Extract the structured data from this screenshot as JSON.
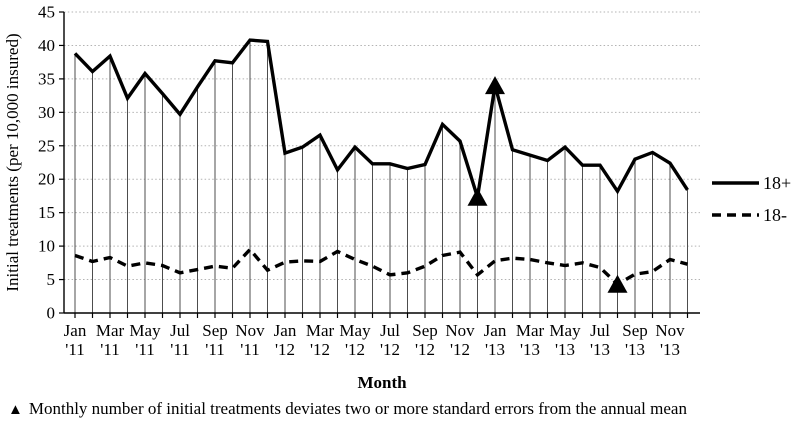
{
  "chart_data": {
    "type": "line",
    "title": "",
    "xlabel": "Month",
    "ylabel": "Initial treatments (per 10,000 insured)",
    "ylim": [
      0,
      45
    ],
    "ytick_interval": 5,
    "yticks": [
      0,
      5,
      10,
      15,
      20,
      25,
      30,
      35,
      40,
      45
    ],
    "x_tick_label_step": 2,
    "grid": {
      "horizontal": "dotted",
      "vertical_drop_lines_to": "18+"
    },
    "legend_position": "right",
    "categories": [
      "Jan '11",
      "Feb '11",
      "Mar '11",
      "Apr '11",
      "May '11",
      "Jun '11",
      "Jul '11",
      "Aug '11",
      "Sep '11",
      "Oct '11",
      "Nov '11",
      "Dec '11",
      "Jan '12",
      "Feb '12",
      "Mar '12",
      "Apr '12",
      "May '12",
      "Jun '12",
      "Jul '12",
      "Aug '12",
      "Sep '12",
      "Oct '12",
      "Nov '12",
      "Dec '12",
      "Jan '13",
      "Feb '13",
      "Mar '13",
      "Apr '13",
      "May '13",
      "Jun '13",
      "Jul '13",
      "Aug '13",
      "Sep '13",
      "Oct '13",
      "Nov '13",
      "Dec '13"
    ],
    "series": [
      {
        "name": "18+",
        "style": "solid",
        "values": [
          38.8,
          36.1,
          38.4,
          32.1,
          35.8,
          32.8,
          29.7,
          33.8,
          37.7,
          37.4,
          40.8,
          40.6,
          23.9,
          24.8,
          26.6,
          21.4,
          24.8,
          22.3,
          22.3,
          21.6,
          22.2,
          28.2,
          25.7,
          17.3,
          34.0,
          24.4,
          23.6,
          22.8,
          24.8,
          22.1,
          22.1,
          18.2,
          23.0,
          24.0,
          22.4,
          18.4
        ]
      },
      {
        "name": "18-",
        "style": "dashed",
        "values": [
          8.6,
          7.7,
          8.3,
          7.0,
          7.5,
          7.1,
          6.0,
          6.5,
          7.0,
          6.7,
          9.5,
          6.4,
          7.6,
          7.8,
          7.7,
          9.2,
          8.0,
          7.0,
          5.7,
          6.0,
          7.0,
          8.6,
          9.1,
          5.7,
          7.8,
          8.2,
          8.0,
          7.5,
          7.1,
          7.5,
          6.8,
          4.3,
          5.8,
          6.2,
          8.0,
          7.3
        ]
      }
    ],
    "markers": [
      {
        "series": "18+",
        "category": "Dec '12",
        "value": 17.3,
        "symbol": "triangle-up"
      },
      {
        "series": "18+",
        "category": "Jan '13",
        "value": 34.0,
        "symbol": "triangle-up"
      },
      {
        "series": "18-",
        "category": "Aug '13",
        "value": 4.3,
        "symbol": "triangle-up"
      }
    ]
  },
  "legend": {
    "items": [
      {
        "label": "18+",
        "line_style": "solid"
      },
      {
        "label": "18-",
        "line_style": "dashed"
      }
    ]
  },
  "footnote": {
    "marker": "▲",
    "text": "Monthly number of initial treatments deviates two or more standard errors from the annual mean"
  },
  "colors": {
    "series": "#000000",
    "gridline": "#b3b3b3",
    "drop_line": "#4d4d4d",
    "text": "#000000",
    "background": "#ffffff"
  }
}
